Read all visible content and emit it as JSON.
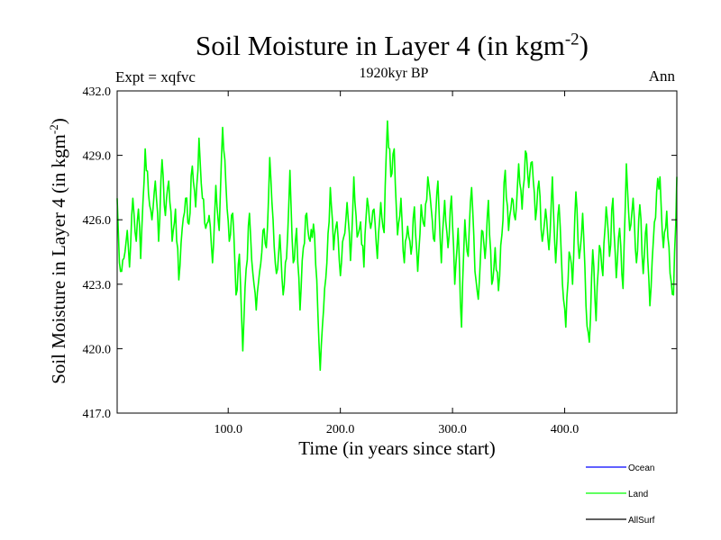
{
  "chart_data": {
    "type": "line",
    "title": "Soil Moisture in Layer 4 (in kgm",
    "title_exponent": "-2",
    "title_close": ")",
    "subtitle": "1920kyr BP",
    "expt_label": "Expt = xqfvc",
    "season_label": "Ann",
    "xlabel": "Time (in years since start)",
    "ylabel": "Soil Moisture in Layer 4 (in kgm",
    "ylabel_exponent": "-2",
    "ylabel_close": ")",
    "xlim": [
      1,
      500
    ],
    "ylim": [
      417.0,
      432.0
    ],
    "x_ticks": [
      100,
      200,
      300,
      400
    ],
    "x_tick_labels": [
      "100.0",
      "200.0",
      "300.0",
      "400.0"
    ],
    "y_ticks": [
      417,
      420,
      423,
      426,
      429,
      432
    ],
    "y_tick_labels": [
      "417.0",
      "420.0",
      "423.0",
      "426.0",
      "429.0",
      "432.0"
    ],
    "legend": [
      {
        "name": "Ocean",
        "color": "#0000ff"
      },
      {
        "name": "Land",
        "color": "#00ff00"
      },
      {
        "name": "AllSurf",
        "color": "#000000"
      }
    ],
    "series": [
      {
        "name": "Land",
        "color": "#00ff00",
        "x_start": 1,
        "x_step": 1,
        "anchors": [
          [
            1,
            427.0
          ],
          [
            3,
            424.0
          ],
          [
            5,
            423.6
          ],
          [
            8,
            424.5
          ],
          [
            10,
            425.5
          ],
          [
            12,
            423.8
          ],
          [
            15,
            427.0
          ],
          [
            18,
            425.0
          ],
          [
            20,
            426.5
          ],
          [
            22,
            424.2
          ],
          [
            24,
            426.8
          ],
          [
            26,
            429.3
          ],
          [
            29,
            427.2
          ],
          [
            32,
            426.0
          ],
          [
            35,
            427.8
          ],
          [
            38,
            425.0
          ],
          [
            41,
            428.8
          ],
          [
            44,
            426.2
          ],
          [
            47,
            427.8
          ],
          [
            50,
            425.0
          ],
          [
            53,
            426.5
          ],
          [
            56,
            423.2
          ],
          [
            59,
            425.6
          ],
          [
            62,
            427.0
          ],
          [
            65,
            425.8
          ],
          [
            68,
            428.5
          ],
          [
            71,
            426.6
          ],
          [
            74,
            429.8
          ],
          [
            77,
            427.0
          ],
          [
            80,
            425.6
          ],
          [
            83,
            426.2
          ],
          [
            86,
            424.0
          ],
          [
            89,
            427.6
          ],
          [
            92,
            425.5
          ],
          [
            95,
            430.3
          ],
          [
            98,
            427.6
          ],
          [
            101,
            425.0
          ],
          [
            104,
            426.3
          ],
          [
            107,
            422.5
          ],
          [
            110,
            424.4
          ],
          [
            113,
            419.9
          ],
          [
            116,
            423.7
          ],
          [
            119,
            426.3
          ],
          [
            122,
            423.5
          ],
          [
            125,
            421.8
          ],
          [
            128,
            423.6
          ],
          [
            131,
            425.5
          ],
          [
            134,
            424.7
          ],
          [
            137,
            428.9
          ],
          [
            140,
            426.0
          ],
          [
            143,
            423.5
          ],
          [
            146,
            425.3
          ],
          [
            149,
            422.5
          ],
          [
            152,
            424.2
          ],
          [
            155,
            428.3
          ],
          [
            158,
            424.0
          ],
          [
            161,
            425.6
          ],
          [
            164,
            421.8
          ],
          [
            167,
            424.7
          ],
          [
            170,
            426.3
          ],
          [
            173,
            425.0
          ],
          [
            176,
            425.8
          ],
          [
            179,
            423.2
          ],
          [
            182,
            419.0
          ],
          [
            185,
            421.8
          ],
          [
            188,
            424.0
          ],
          [
            191,
            427.5
          ],
          [
            194,
            424.6
          ],
          [
            197,
            425.9
          ],
          [
            200,
            423.4
          ],
          [
            203,
            425.2
          ],
          [
            206,
            426.8
          ],
          [
            209,
            424.1
          ],
          [
            212,
            428.0
          ],
          [
            215,
            425.2
          ],
          [
            218,
            425.9
          ],
          [
            221,
            423.8
          ],
          [
            224,
            427.0
          ],
          [
            227,
            425.6
          ],
          [
            230,
            426.5
          ],
          [
            233,
            424.2
          ],
          [
            236,
            426.8
          ],
          [
            239,
            425.4
          ],
          [
            242,
            430.6
          ],
          [
            245,
            428.0
          ],
          [
            248,
            429.3
          ],
          [
            251,
            425.3
          ],
          [
            254,
            427.0
          ],
          [
            257,
            424.0
          ],
          [
            260,
            425.7
          ],
          [
            263,
            424.4
          ],
          [
            266,
            426.6
          ],
          [
            269,
            423.6
          ],
          [
            272,
            426.7
          ],
          [
            275,
            425.7
          ],
          [
            278,
            428.0
          ],
          [
            281,
            426.5
          ],
          [
            284,
            425.0
          ],
          [
            287,
            427.8
          ],
          [
            290,
            424.0
          ],
          [
            293,
            426.9
          ],
          [
            296,
            424.7
          ],
          [
            299,
            427.1
          ],
          [
            302,
            423.0
          ],
          [
            305,
            425.6
          ],
          [
            308,
            421.0
          ],
          [
            311,
            426.0
          ],
          [
            314,
            424.3
          ],
          [
            317,
            427.5
          ],
          [
            320,
            423.6
          ],
          [
            323,
            422.3
          ],
          [
            326,
            425.5
          ],
          [
            329,
            424.2
          ],
          [
            332,
            426.9
          ],
          [
            335,
            423.0
          ],
          [
            338,
            424.7
          ],
          [
            341,
            422.7
          ],
          [
            344,
            425.3
          ],
          [
            347,
            428.3
          ],
          [
            350,
            425.5
          ],
          [
            353,
            427.0
          ],
          [
            356,
            426.0
          ],
          [
            359,
            428.6
          ],
          [
            362,
            426.5
          ],
          [
            365,
            429.2
          ],
          [
            368,
            427.5
          ],
          [
            371,
            428.7
          ],
          [
            374,
            426.0
          ],
          [
            377,
            427.8
          ],
          [
            380,
            425.0
          ],
          [
            383,
            426.5
          ],
          [
            386,
            424.6
          ],
          [
            389,
            428.0
          ],
          [
            392,
            424.0
          ],
          [
            395,
            426.7
          ],
          [
            398,
            423.0
          ],
          [
            401,
            421.0
          ],
          [
            404,
            424.5
          ],
          [
            407,
            423.0
          ],
          [
            410,
            427.3
          ],
          [
            413,
            424.2
          ],
          [
            416,
            426.3
          ],
          [
            419,
            422.0
          ],
          [
            422,
            420.3
          ],
          [
            425,
            424.6
          ],
          [
            428,
            421.3
          ],
          [
            431,
            424.8
          ],
          [
            434,
            423.4
          ],
          [
            437,
            426.6
          ],
          [
            440,
            424.3
          ],
          [
            443,
            427.0
          ],
          [
            446,
            423.3
          ],
          [
            449,
            425.6
          ],
          [
            452,
            422.8
          ],
          [
            455,
            428.6
          ],
          [
            458,
            425.5
          ],
          [
            461,
            427.0
          ],
          [
            464,
            424.0
          ],
          [
            467,
            426.7
          ],
          [
            470,
            423.5
          ],
          [
            473,
            425.8
          ],
          [
            476,
            422.0
          ],
          [
            479,
            425.0
          ],
          [
            482,
            427.3
          ],
          [
            485,
            428.0
          ],
          [
            488,
            424.7
          ],
          [
            491,
            426.4
          ],
          [
            494,
            423.5
          ],
          [
            497,
            422.5
          ],
          [
            500,
            428.0
          ]
        ]
      }
    ]
  }
}
